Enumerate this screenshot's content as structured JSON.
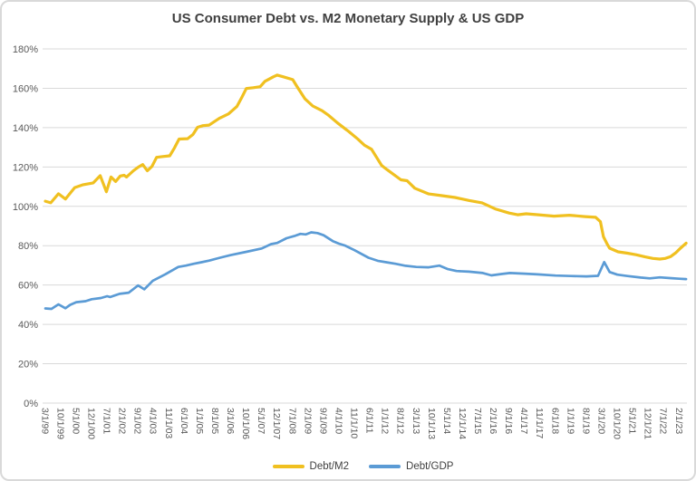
{
  "colors": {
    "background": "#FFFFFF",
    "border": "#D9D9D9",
    "grid": "#D9D9D9",
    "axis_text": "#595959",
    "title_text": "#404040",
    "debt_m2": "#F0C020",
    "debt_gdp": "#5B9BD5"
  },
  "chart_data": {
    "type": "line",
    "title": "US Consumer Debt vs. M2 Monetary Supply & US GDP",
    "grid": true,
    "legend_position": "bottom",
    "x_axis": {
      "label_rotation": 90
    },
    "y_axis": {
      "min": 0,
      "max": 180,
      "step": 20,
      "tick_suffix": "%",
      "tick_labels": [
        "0%",
        "20%",
        "40%",
        "60%",
        "80%",
        "100%",
        "120%",
        "140%",
        "160%",
        "180%"
      ]
    },
    "categories": [
      "3/1/99",
      "10/1/99",
      "5/1/00",
      "12/1/00",
      "7/1/01",
      "2/1/02",
      "9/1/02",
      "4/1/03",
      "11/1/03",
      "6/1/04",
      "1/1/05",
      "8/1/05",
      "3/1/06",
      "10/1/06",
      "5/1/07",
      "12/1/07",
      "7/1/08",
      "2/1/09",
      "9/1/09",
      "4/1/10",
      "11/1/10",
      "6/1/11",
      "1/1/12",
      "8/1/12",
      "3/1/13",
      "10/1/13",
      "5/1/14",
      "12/1/14",
      "7/1/15",
      "2/1/16",
      "9/1/16",
      "4/1/17",
      "11/1/17",
      "6/1/18",
      "1/1/19",
      "8/1/19",
      "3/1/20",
      "10/1/20",
      "5/1/21",
      "12/1/21",
      "7/1/22",
      "2/1/23"
    ],
    "series": [
      {
        "name": "Debt/M2",
        "color": "#F0C020",
        "stroke_width": 3.2,
        "points": [
          [
            0,
            102.6
          ],
          [
            0.35,
            101.8
          ],
          [
            0.85,
            106.4
          ],
          [
            1.3,
            103.7
          ],
          [
            1.9,
            109.5
          ],
          [
            2.45,
            111.0
          ],
          [
            3.1,
            111.9
          ],
          [
            3.55,
            115.6
          ],
          [
            3.95,
            107.4
          ],
          [
            4.25,
            114.9
          ],
          [
            4.55,
            112.6
          ],
          [
            4.85,
            115.4
          ],
          [
            5.1,
            115.8
          ],
          [
            5.25,
            114.9
          ],
          [
            5.7,
            118.1
          ],
          [
            6.0,
            119.9
          ],
          [
            6.3,
            121.2
          ],
          [
            6.6,
            118.1
          ],
          [
            6.9,
            120.3
          ],
          [
            7.2,
            124.9
          ],
          [
            7.6,
            125.3
          ],
          [
            8.05,
            125.7
          ],
          [
            8.35,
            129.7
          ],
          [
            8.65,
            134.2
          ],
          [
            9.2,
            134.4
          ],
          [
            9.55,
            136.5
          ],
          [
            9.85,
            140.2
          ],
          [
            10.2,
            141.0
          ],
          [
            10.6,
            141.3
          ],
          [
            11.25,
            144.7
          ],
          [
            11.85,
            147.0
          ],
          [
            12.4,
            150.8
          ],
          [
            12.7,
            155.3
          ],
          [
            13.0,
            159.9
          ],
          [
            13.45,
            160.3
          ],
          [
            13.9,
            160.8
          ],
          [
            14.2,
            163.5
          ],
          [
            14.75,
            165.8
          ],
          [
            15.0,
            166.7
          ],
          [
            15.4,
            165.8
          ],
          [
            16.0,
            164.4
          ],
          [
            16.3,
            160.6
          ],
          [
            16.8,
            154.6
          ],
          [
            17.3,
            151.0
          ],
          [
            17.9,
            148.6
          ],
          [
            18.3,
            146.4
          ],
          [
            18.9,
            142.4
          ],
          [
            19.65,
            137.9
          ],
          [
            20.2,
            134.3
          ],
          [
            20.65,
            131.0
          ],
          [
            21.1,
            129.0
          ],
          [
            21.75,
            120.8
          ],
          [
            22.1,
            118.7
          ],
          [
            23.0,
            113.5
          ],
          [
            23.4,
            113.0
          ],
          [
            23.9,
            109.2
          ],
          [
            24.8,
            106.3
          ],
          [
            25.65,
            105.4
          ],
          [
            26.5,
            104.5
          ],
          [
            27.4,
            103.0
          ],
          [
            28.25,
            101.8
          ],
          [
            29.1,
            98.7
          ],
          [
            30.0,
            96.6
          ],
          [
            30.55,
            95.7
          ],
          [
            31.1,
            96.2
          ],
          [
            31.9,
            95.7
          ],
          [
            32.9,
            95.0
          ],
          [
            33.9,
            95.5
          ],
          [
            34.9,
            94.8
          ],
          [
            35.6,
            94.4
          ],
          [
            35.9,
            92.2
          ],
          [
            36.1,
            84.5
          ],
          [
            36.35,
            80.7
          ],
          [
            36.5,
            78.7
          ],
          [
            37.05,
            76.9
          ],
          [
            37.65,
            76.2
          ],
          [
            38.2,
            75.4
          ],
          [
            38.8,
            74.3
          ],
          [
            39.3,
            73.5
          ],
          [
            39.75,
            73.2
          ],
          [
            40.1,
            73.5
          ],
          [
            40.45,
            74.5
          ],
          [
            40.8,
            76.5
          ],
          [
            41.05,
            78.5
          ],
          [
            41.45,
            81.3
          ]
        ]
      },
      {
        "name": "Debt/GDP",
        "color": "#5B9BD5",
        "stroke_width": 2.7,
        "points": [
          [
            0,
            48.1
          ],
          [
            0.4,
            47.9
          ],
          [
            0.85,
            50.2
          ],
          [
            1.3,
            48.2
          ],
          [
            1.6,
            49.9
          ],
          [
            2.0,
            51.3
          ],
          [
            2.6,
            51.8
          ],
          [
            3.0,
            52.8
          ],
          [
            3.6,
            53.4
          ],
          [
            4.0,
            54.3
          ],
          [
            4.2,
            53.9
          ],
          [
            4.8,
            55.5
          ],
          [
            5.4,
            56.1
          ],
          [
            6.0,
            59.8
          ],
          [
            6.4,
            57.8
          ],
          [
            6.95,
            62.2
          ],
          [
            7.75,
            65.4
          ],
          [
            8.6,
            69.2
          ],
          [
            9.1,
            69.9
          ],
          [
            9.6,
            70.8
          ],
          [
            10.1,
            71.6
          ],
          [
            10.6,
            72.4
          ],
          [
            11.3,
            73.9
          ],
          [
            12.0,
            75.2
          ],
          [
            13.0,
            76.9
          ],
          [
            14.0,
            78.6
          ],
          [
            14.6,
            80.8
          ],
          [
            15.0,
            81.4
          ],
          [
            15.6,
            83.8
          ],
          [
            16.1,
            84.9
          ],
          [
            16.5,
            86.0
          ],
          [
            16.85,
            85.7
          ],
          [
            17.2,
            86.8
          ],
          [
            17.6,
            86.4
          ],
          [
            18.0,
            85.3
          ],
          [
            18.6,
            82.3
          ],
          [
            19.0,
            81.0
          ],
          [
            19.4,
            80.0
          ],
          [
            20.0,
            77.7
          ],
          [
            20.9,
            73.9
          ],
          [
            21.5,
            72.3
          ],
          [
            22.05,
            71.6
          ],
          [
            22.65,
            70.8
          ],
          [
            23.3,
            69.8
          ],
          [
            24.0,
            69.2
          ],
          [
            24.8,
            69.0
          ],
          [
            25.5,
            69.9
          ],
          [
            26.0,
            68.2
          ],
          [
            26.6,
            67.1
          ],
          [
            27.4,
            66.8
          ],
          [
            28.3,
            66.1
          ],
          [
            28.85,
            64.9
          ],
          [
            29.5,
            65.6
          ],
          [
            30.05,
            66.1
          ],
          [
            31.0,
            65.8
          ],
          [
            31.85,
            65.4
          ],
          [
            33.0,
            64.8
          ],
          [
            34.0,
            64.6
          ],
          [
            35.0,
            64.4
          ],
          [
            35.75,
            64.7
          ],
          [
            36.15,
            71.7
          ],
          [
            36.5,
            66.6
          ],
          [
            37.0,
            65.3
          ],
          [
            37.65,
            64.6
          ],
          [
            38.5,
            63.8
          ],
          [
            39.1,
            63.4
          ],
          [
            39.75,
            63.9
          ],
          [
            40.5,
            63.5
          ],
          [
            41.0,
            63.2
          ],
          [
            41.45,
            63.0
          ]
        ]
      }
    ]
  }
}
